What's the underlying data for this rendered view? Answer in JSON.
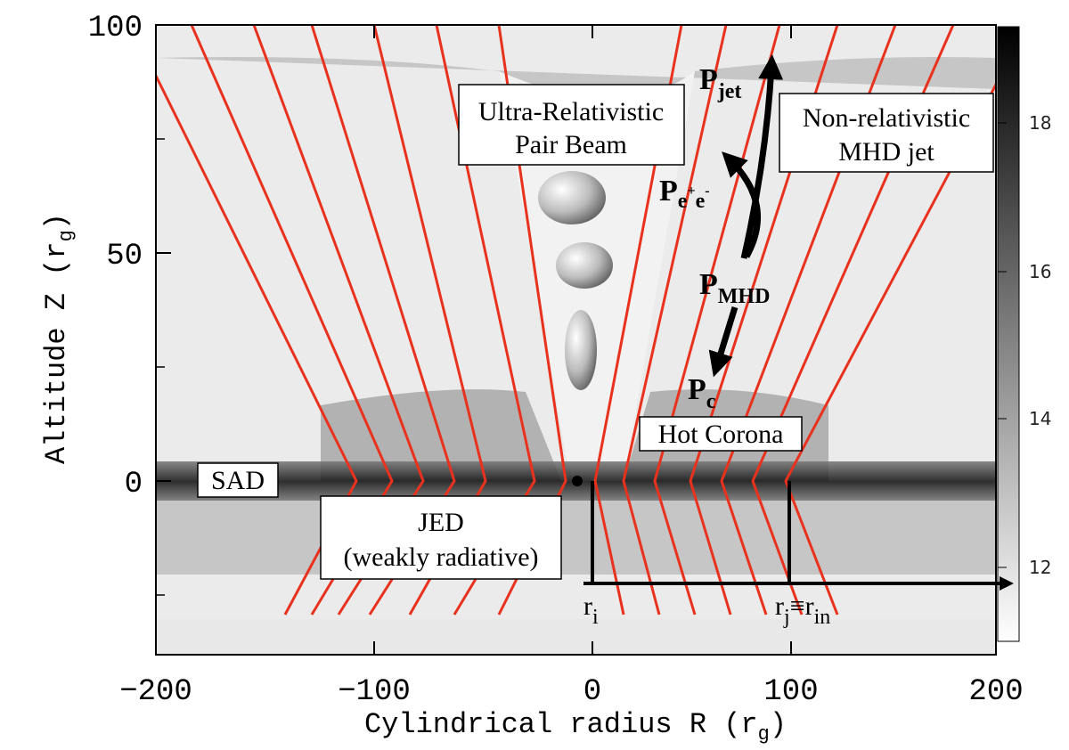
{
  "x_axis": {
    "label": "Cylindrical radius R (r",
    "label_sub": "g",
    "label_end": ")",
    "ticks": [
      "−200",
      "−100",
      "0",
      "100",
      "200"
    ]
  },
  "y_axis": {
    "label": "Altitude Z (r",
    "label_sub": "g",
    "label_end": ")",
    "ticks": [
      "0",
      "50",
      "100"
    ]
  },
  "colorbar": {
    "ticks": [
      "12",
      "14",
      "16",
      "18"
    ]
  },
  "annotations": {
    "pair_beam": [
      "Ultra-Relativistic",
      "Pair Beam"
    ],
    "mhd_jet": [
      "Non-relativistic",
      "MHD jet"
    ],
    "hot_corona": "Hot Corona",
    "sad": "SAD",
    "jed": [
      "JED",
      "(weakly radiative)"
    ],
    "p_jet": {
      "main": "P",
      "sub": "jet"
    },
    "p_pair": {
      "main": "P",
      "sub": "e",
      "sup": "+",
      "sub2": "e",
      "sup2": "-"
    },
    "p_mhd": {
      "main": "P",
      "sub": "MHD"
    },
    "p_c": {
      "main": "P",
      "sub": "c"
    },
    "r_i": {
      "main": "r",
      "sub": "i"
    },
    "r_j": {
      "main": "r",
      "sub": "j",
      "mid": "≡r",
      "sub2": "in"
    }
  }
}
